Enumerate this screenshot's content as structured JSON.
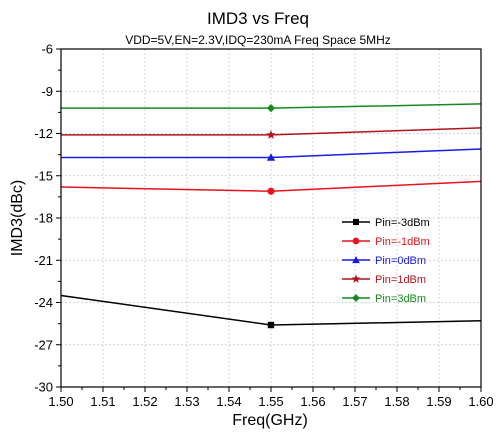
{
  "chart_data": {
    "type": "line",
    "title": "IMD3 vs Freq",
    "subtitle": "VDD=5V,EN=2.3V,IDQ=230mA Freq Space 5MHz",
    "xlabel": "Freq(GHz)",
    "ylabel": "IMD3(dBc)",
    "xlim": [
      1.5,
      1.6
    ],
    "ylim": [
      -30,
      -6
    ],
    "xticks": [
      "1.50",
      "1.51",
      "1.52",
      "1.53",
      "1.54",
      "1.55",
      "1.56",
      "1.57",
      "1.58",
      "1.59",
      "1.60"
    ],
    "yticks": [
      "-6",
      "-9",
      "-12",
      "-15",
      "-18",
      "-21",
      "-24",
      "-27",
      "-30"
    ],
    "grid": true,
    "legend_position": "lower-right",
    "x": [
      1.5,
      1.55,
      1.6
    ],
    "series": [
      {
        "name": "Pin=-3dBm",
        "color": "#000000",
        "marker": "square",
        "values": [
          -23.5,
          -25.6,
          -25.3
        ]
      },
      {
        "name": "Pin=-1dBm",
        "color": "#e8141b",
        "marker": "circle",
        "values": [
          -15.8,
          -16.1,
          -15.4
        ]
      },
      {
        "name": "Pin=0dBm",
        "color": "#1a1ae6",
        "marker": "triangle",
        "values": [
          -13.7,
          -13.7,
          -13.1
        ]
      },
      {
        "name": "Pin=1dBm",
        "color": "#b0141b",
        "marker": "star",
        "values": [
          -12.1,
          -12.1,
          -11.6
        ]
      },
      {
        "name": "Pin=3dBm",
        "color": "#16891f",
        "marker": "diamond",
        "values": [
          -10.2,
          -10.2,
          -9.9
        ]
      }
    ]
  }
}
